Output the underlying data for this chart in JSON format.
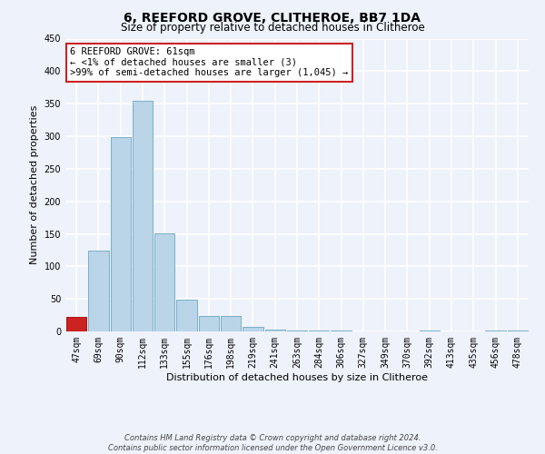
{
  "title": "6, REEFORD GROVE, CLITHEROE, BB7 1DA",
  "subtitle": "Size of property relative to detached houses in Clitheroe",
  "xlabel": "Distribution of detached houses by size in Clitheroe",
  "ylabel": "Number of detached properties",
  "footnote1": "Contains HM Land Registry data © Crown copyright and database right 2024.",
  "footnote2": "Contains public sector information licensed under the Open Government Licence v3.0.",
  "annotation_line1": "6 REEFORD GROVE: 61sqm",
  "annotation_line2": "← <1% of detached houses are smaller (3)",
  "annotation_line3": ">99% of semi-detached houses are larger (1,045) →",
  "bar_labels": [
    "47sqm",
    "69sqm",
    "90sqm",
    "112sqm",
    "133sqm",
    "155sqm",
    "176sqm",
    "198sqm",
    "219sqm",
    "241sqm",
    "263sqm",
    "284sqm",
    "306sqm",
    "327sqm",
    "349sqm",
    "370sqm",
    "392sqm",
    "413sqm",
    "435sqm",
    "456sqm",
    "478sqm"
  ],
  "bar_values": [
    22,
    124,
    298,
    354,
    151,
    49,
    24,
    24,
    7,
    3,
    2,
    1,
    1,
    0,
    0,
    0,
    1,
    0,
    0,
    1,
    1
  ],
  "bar_color": "#bad4e8",
  "bar_edge_color": "#7aafc8",
  "highlight_bar_index": 0,
  "highlight_bar_color": "#cc2222",
  "highlight_bar_edge_color": "#aa1111",
  "annotation_box_color": "#ffffff",
  "annotation_box_edge_color": "#cc2222",
  "ylim": [
    0,
    450
  ],
  "yticks": [
    0,
    50,
    100,
    150,
    200,
    250,
    300,
    350,
    400,
    450
  ],
  "background_color": "#eef2fa",
  "grid_color": "#ffffff",
  "title_fontsize": 10,
  "subtitle_fontsize": 8.5,
  "axis_label_fontsize": 8,
  "tick_fontsize": 7,
  "annotation_fontsize": 7.5,
  "footnote_fontsize": 6
}
